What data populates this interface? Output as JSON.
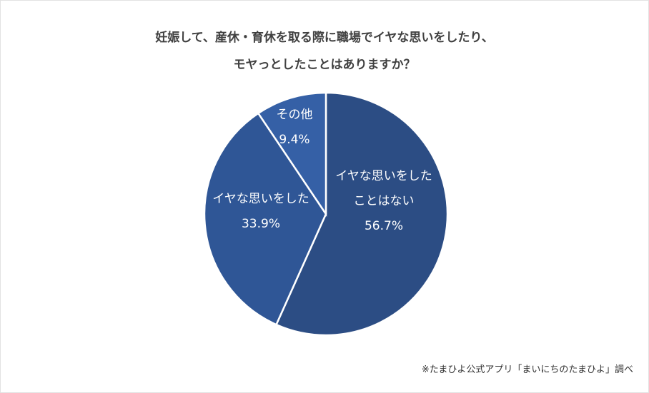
{
  "chart_data": {
    "type": "pie",
    "title": [
      "妊娠して、産休・育休を取る際に職場でイヤな思いをしたり、",
      "モヤっとしたことはありますか？"
    ],
    "slices": [
      {
        "label_lines": [
          "イヤな思いをした",
          "ことはない"
        ],
        "value": 56.7,
        "value_label": "56.7%",
        "color": "#2c4d84"
      },
      {
        "label_lines": [
          "イヤな思いをした"
        ],
        "value": 33.9,
        "value_label": "33.9%",
        "color": "#2f5696"
      },
      {
        "label_lines": [
          "その他"
        ],
        "value": 9.4,
        "value_label": "9.4%",
        "color": "#3560a6"
      }
    ],
    "start_angle": "top",
    "direction": "clockwise",
    "legend": "none"
  },
  "source_note": "※たまひよ公式アプリ「まいにちのたまひよ」調べ"
}
